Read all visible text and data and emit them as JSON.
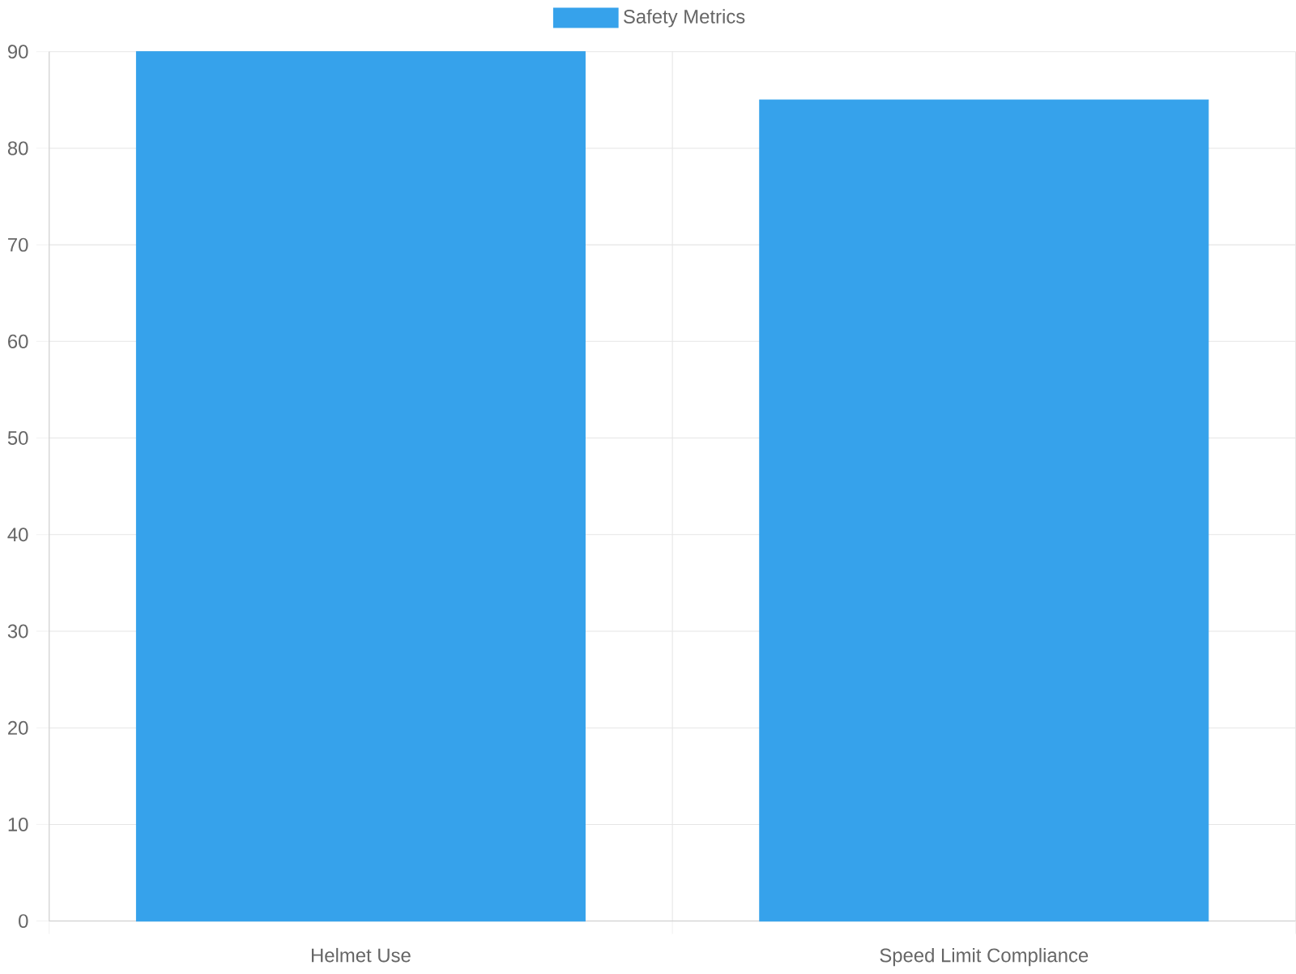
{
  "chart_data": {
    "type": "bar",
    "categories": [
      "Helmet Use",
      "Speed Limit Compliance"
    ],
    "series": [
      {
        "name": "Safety Metrics",
        "color": "#36a2eb",
        "values": [
          90,
          85
        ]
      }
    ],
    "ylim": [
      0,
      90
    ],
    "yticks": [
      0,
      10,
      20,
      30,
      40,
      50,
      60,
      70,
      80,
      90
    ],
    "grid": true,
    "legend": "top"
  }
}
